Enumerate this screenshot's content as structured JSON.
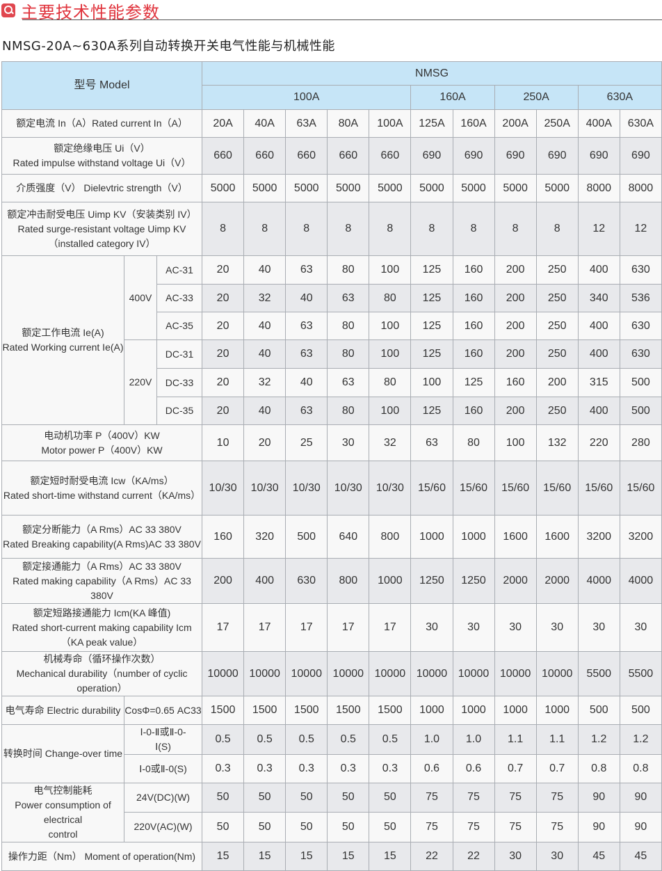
{
  "title": "主要技术性能参数",
  "subtitle": "NMSG-20A~630A系列自动转换开关电气性能与机械性能",
  "header": {
    "model": "型号 Model",
    "series": "NMSG",
    "groups": [
      "100A",
      "160A",
      "250A",
      "630A"
    ]
  },
  "working_current": {
    "label": "额定工作电流 Ie(A)\nRated Working current Ie(A)",
    "v400": "400V",
    "v220": "220V"
  },
  "change_over": "转换时间 Change-over time",
  "power": "电气控制能耗\nPower consumption of electrical\ncontrol",
  "rows": [
    {
      "label": "额定电流 In（A）Rated current In（A）",
      "values": [
        "20A",
        "40A",
        "63A",
        "80A",
        "100A",
        "125A",
        "160A",
        "200A",
        "250A",
        "400A",
        "630A"
      ]
    },
    {
      "label": "额定绝缘电压 Ui（V）\nRated impulse withstand voltage Ui（V）",
      "values": [
        "660",
        "660",
        "660",
        "660",
        "660",
        "690",
        "690",
        "690",
        "690",
        "690",
        "690"
      ]
    },
    {
      "label": "介质强度（V） Dielevtric strength（V）",
      "values": [
        "5000",
        "5000",
        "5000",
        "5000",
        "5000",
        "5000",
        "5000",
        "5000",
        "5000",
        "8000",
        "8000"
      ]
    },
    {
      "label": "额定冲击耐受电压 Uimp KV（安装类别 IV）\nRated surge-resistant voltage Uimp KV\n（installed category IV）",
      "values": [
        "8",
        "8",
        "8",
        "8",
        "8",
        "8",
        "8",
        "8",
        "8",
        "12",
        "12"
      ]
    },
    {
      "label": "AC-31",
      "values": [
        "20",
        "40",
        "63",
        "80",
        "100",
        "125",
        "160",
        "200",
        "250",
        "400",
        "630"
      ]
    },
    {
      "label": "AC-33",
      "values": [
        "20",
        "32",
        "40",
        "63",
        "80",
        "125",
        "160",
        "200",
        "250",
        "340",
        "536"
      ]
    },
    {
      "label": "AC-35",
      "values": [
        "20",
        "40",
        "63",
        "80",
        "100",
        "125",
        "160",
        "200",
        "250",
        "400",
        "630"
      ]
    },
    {
      "label": "DC-31",
      "values": [
        "20",
        "40",
        "63",
        "80",
        "100",
        "125",
        "160",
        "200",
        "250",
        "400",
        "630"
      ]
    },
    {
      "label": "DC-33",
      "values": [
        "20",
        "32",
        "40",
        "63",
        "80",
        "100",
        "125",
        "160",
        "200",
        "315",
        "500"
      ]
    },
    {
      "label": "DC-35",
      "values": [
        "20",
        "40",
        "63",
        "80",
        "100",
        "125",
        "160",
        "200",
        "250",
        "400",
        "500"
      ]
    },
    {
      "label": "电动机功率 P（400V）KW\nMotor power P（400V）KW",
      "values": [
        "10",
        "20",
        "25",
        "30",
        "32",
        "63",
        "80",
        "100",
        "132",
        "220",
        "280"
      ]
    },
    {
      "label": "额定短时耐受电流 Icw（KA/ms）\nRated short-time withstand current（KA/ms）",
      "values": [
        "10/30",
        "10/30",
        "10/30",
        "10/30",
        "10/30",
        "15/60",
        "15/60",
        "15/60",
        "15/60",
        "15/60",
        "15/60"
      ]
    },
    {
      "label": "额定分断能力（A Rms）AC 33 380V\nRated Breaking capability(A Rms)AC 33 380V",
      "values": [
        "160",
        "320",
        "500",
        "640",
        "800",
        "1000",
        "1000",
        "1600",
        "1600",
        "3200",
        "3200"
      ]
    },
    {
      "label": "额定接通能力（A Rms）AC 33 380V\nRated making capability（A Rms）AC 33 380V",
      "values": [
        "200",
        "400",
        "630",
        "800",
        "1000",
        "1250",
        "1250",
        "2000",
        "2000",
        "4000",
        "4000"
      ]
    },
    {
      "label": "额定短路接通能力 Icm(KA 峰值)\nRated short-current making capability Icm\n（KA peak value）",
      "values": [
        "17",
        "17",
        "17",
        "17",
        "17",
        "30",
        "30",
        "30",
        "30",
        "30",
        "30"
      ]
    },
    {
      "label": "机械寿命（循环操作次数）\nMechanical durability（number of cyclic operation）",
      "values": [
        "10000",
        "10000",
        "10000",
        "10000",
        "10000",
        "10000",
        "10000",
        "10000",
        "10000",
        "5500",
        "5500"
      ]
    },
    {
      "label": "电气寿命 Electric durability",
      "sub": "CosΦ=0.65 AC33",
      "values": [
        "1500",
        "1500",
        "1500",
        "1500",
        "1500",
        "1000",
        "1000",
        "1000",
        "1000",
        "500",
        "500"
      ]
    },
    {
      "label": "Ⅰ-0-Ⅱ或Ⅱ-0-\nⅠ(S)",
      "values": [
        "0.5",
        "0.5",
        "0.5",
        "0.5",
        "0.5",
        "1.0",
        "1.0",
        "1.1",
        "1.1",
        "1.2",
        "1.2"
      ]
    },
    {
      "label": "Ⅰ-0或Ⅱ-0(S)",
      "values": [
        "0.3",
        "0.3",
        "0.3",
        "0.3",
        "0.3",
        "0.6",
        "0.6",
        "0.7",
        "0.7",
        "0.8",
        "0.8"
      ]
    },
    {
      "label": "24V(DC)(W)",
      "values": [
        "50",
        "50",
        "50",
        "50",
        "50",
        "75",
        "75",
        "75",
        "75",
        "90",
        "90"
      ]
    },
    {
      "label": "220V(AC)(W)",
      "values": [
        "50",
        "50",
        "50",
        "50",
        "50",
        "75",
        "75",
        "75",
        "75",
        "90",
        "90"
      ]
    },
    {
      "label": "操作力距（Nm） Moment of operation(Nm)",
      "values": [
        "15",
        "15",
        "15",
        "15",
        "15",
        "22",
        "22",
        "30",
        "30",
        "45",
        "45"
      ]
    }
  ],
  "colors": {
    "title": "#e0343d",
    "header_bg": "#c6e5f7",
    "row_gray": "#e8e9ec",
    "row_white": "#f8f8f8"
  }
}
